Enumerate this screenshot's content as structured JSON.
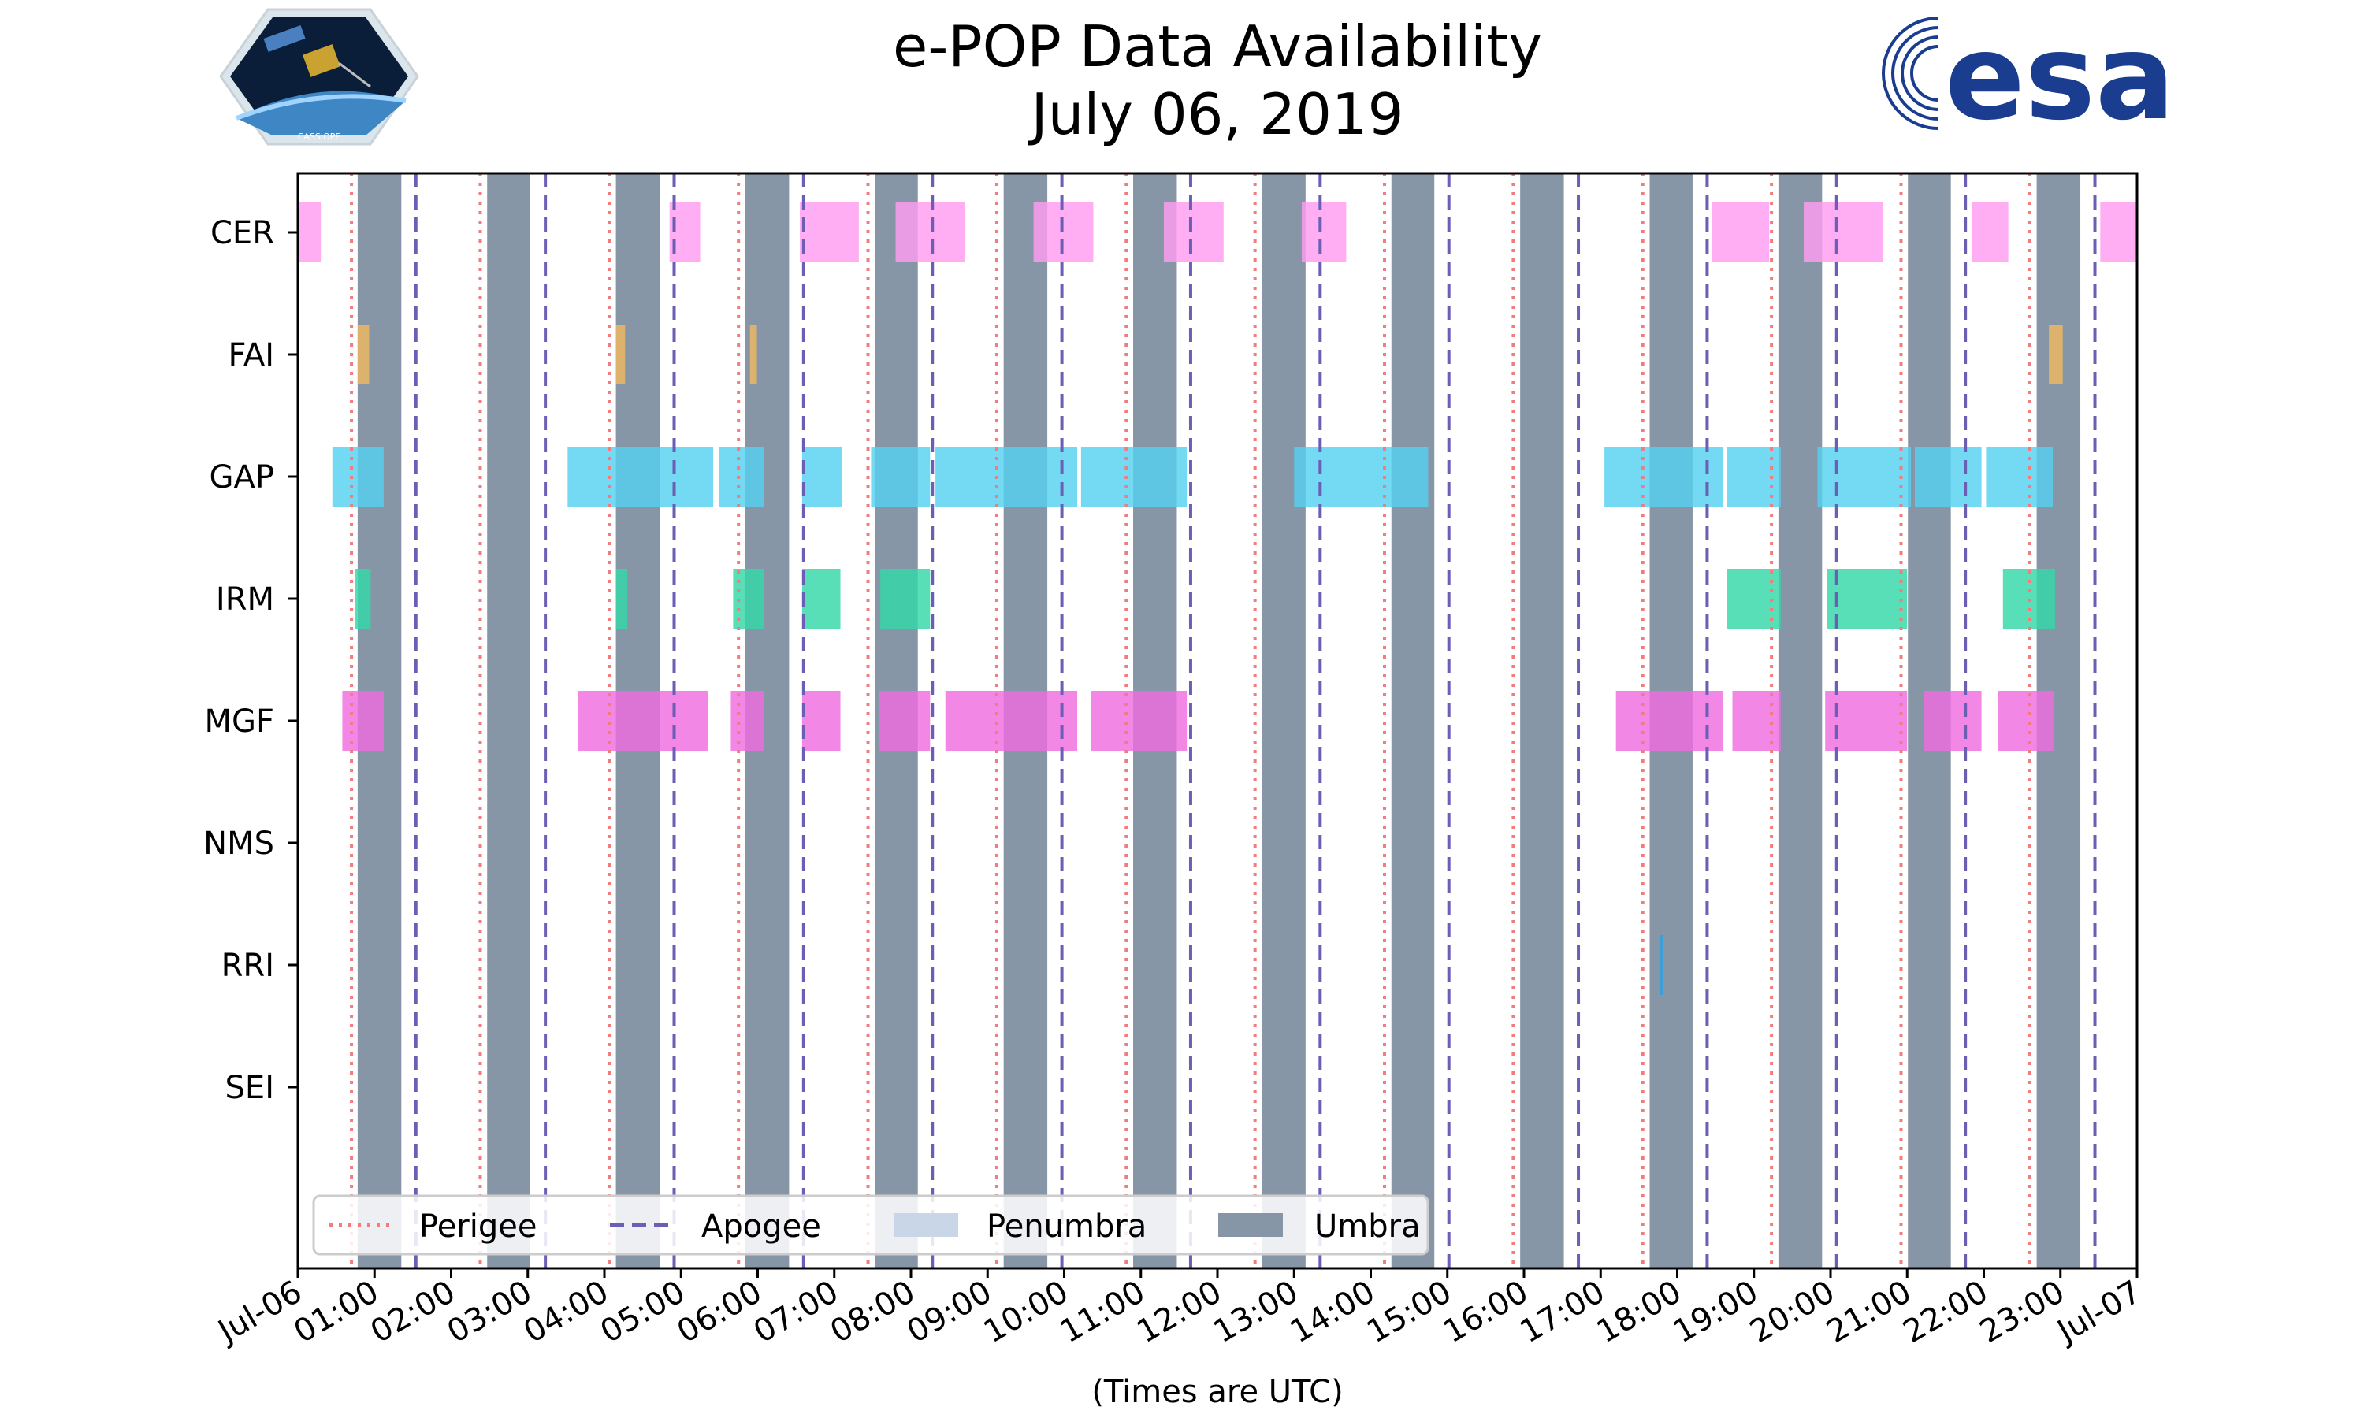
{
  "chart_data": {
    "type": "timeline",
    "title_line1": "e-POP Data Availability",
    "title_line2": "July 06, 2019",
    "xlabel": "(Times are UTC)",
    "x_unit": "hours UTC",
    "xlim": [
      0,
      24
    ],
    "tick_labels": [
      "Jul-06",
      "01:00",
      "02:00",
      "03:00",
      "04:00",
      "05:00",
      "06:00",
      "07:00",
      "08:00",
      "09:00",
      "10:00",
      "11:00",
      "12:00",
      "13:00",
      "14:00",
      "15:00",
      "16:00",
      "17:00",
      "18:00",
      "19:00",
      "20:00",
      "21:00",
      "22:00",
      "23:00",
      "Jul-07"
    ],
    "instruments": [
      "CER",
      "FAI",
      "GAP",
      "IRM",
      "MGF",
      "NMS",
      "RRI",
      "SEI"
    ],
    "umbra": [
      [
        0.78,
        1.35
      ],
      [
        2.47,
        3.03
      ],
      [
        4.15,
        4.72
      ],
      [
        5.84,
        6.41
      ],
      [
        7.53,
        8.09
      ],
      [
        9.21,
        9.78
      ],
      [
        10.9,
        11.47
      ],
      [
        12.58,
        13.15
      ],
      [
        14.27,
        14.83
      ],
      [
        15.95,
        16.52
      ],
      [
        17.64,
        18.2
      ],
      [
        19.32,
        19.89
      ],
      [
        21.01,
        21.57
      ],
      [
        22.69,
        23.26
      ]
    ],
    "perigee": [
      0.7,
      2.38,
      4.07,
      5.75,
      7.44,
      9.12,
      10.81,
      12.49,
      14.18,
      15.86,
      17.55,
      19.23,
      20.92,
      22.6
    ],
    "apogee": [
      1.54,
      3.23,
      4.91,
      6.6,
      8.28,
      9.97,
      11.65,
      13.34,
      15.02,
      16.71,
      18.39,
      20.08,
      21.76,
      23.45
    ],
    "legend": {
      "perigee": "Perigee",
      "apogee": "Apogee",
      "penumbra": "Penumbra",
      "umbra": "Umbra"
    },
    "series": [
      {
        "name": "CER",
        "color": "#ff9cf2",
        "intervals": [
          [
            0,
            0.3
          ],
          [
            4.85,
            5.25
          ],
          [
            6.55,
            7.32
          ],
          [
            7.8,
            8.7
          ],
          [
            9.6,
            10.38
          ],
          [
            11.3,
            12.08
          ],
          [
            13.1,
            13.68
          ],
          [
            18.45,
            19.2
          ],
          [
            19.65,
            20.68
          ],
          [
            21.85,
            22.32
          ],
          [
            23.52,
            24
          ]
        ]
      },
      {
        "name": "FAI",
        "color": "#f0b860",
        "intervals": [
          [
            0.78,
            0.93
          ],
          [
            4.15,
            4.27
          ],
          [
            5.9,
            5.99
          ],
          [
            22.85,
            23.03
          ]
        ]
      },
      {
        "name": "GAP",
        "color": "#55d1ef",
        "intervals": [
          [
            0.45,
            1.12
          ],
          [
            3.52,
            5.42
          ],
          [
            5.5,
            6.08
          ],
          [
            6.58,
            7.1
          ],
          [
            7.48,
            8.25
          ],
          [
            8.32,
            10.17
          ],
          [
            10.22,
            11.6
          ],
          [
            13,
            14.75
          ],
          [
            17.05,
            18.6
          ],
          [
            18.65,
            19.35
          ],
          [
            19.83,
            21.05
          ],
          [
            21.1,
            21.97
          ],
          [
            22.03,
            22.9
          ]
        ]
      },
      {
        "name": "IRM",
        "color": "#33d8a8",
        "intervals": [
          [
            0.75,
            0.95
          ],
          [
            4.15,
            4.3
          ],
          [
            5.68,
            6.08
          ],
          [
            6.58,
            7.08
          ],
          [
            7.6,
            8.25
          ],
          [
            18.65,
            19.35
          ],
          [
            19.95,
            21
          ],
          [
            22.25,
            22.93
          ]
        ]
      },
      {
        "name": "MGF",
        "color": "#ef6ce0",
        "intervals": [
          [
            0.58,
            1.12
          ],
          [
            3.65,
            5.35
          ],
          [
            5.65,
            6.08
          ],
          [
            6.58,
            7.08
          ],
          [
            7.58,
            8.25
          ],
          [
            8.45,
            10.17
          ],
          [
            10.35,
            11.6
          ],
          [
            17.2,
            18.6
          ],
          [
            18.72,
            19.35
          ],
          [
            19.93,
            21
          ],
          [
            21.22,
            21.97
          ],
          [
            22.18,
            22.92
          ]
        ]
      },
      {
        "name": "NMS",
        "color": "#8c6cd0",
        "intervals": []
      },
      {
        "name": "RRI",
        "color": "#2d9fe0",
        "intervals": [
          [
            17.77,
            17.82
          ]
        ]
      },
      {
        "name": "SEI",
        "color": "#999999",
        "intervals": []
      }
    ],
    "colors": {
      "umbra": "#8796a6",
      "penumbra": "#c8d6e7",
      "perigee": "#f27c7c",
      "apogee": "#6b5fb5"
    }
  },
  "logos": {
    "cassiope_text": "CASSIOPE",
    "esa_text": "esa"
  }
}
